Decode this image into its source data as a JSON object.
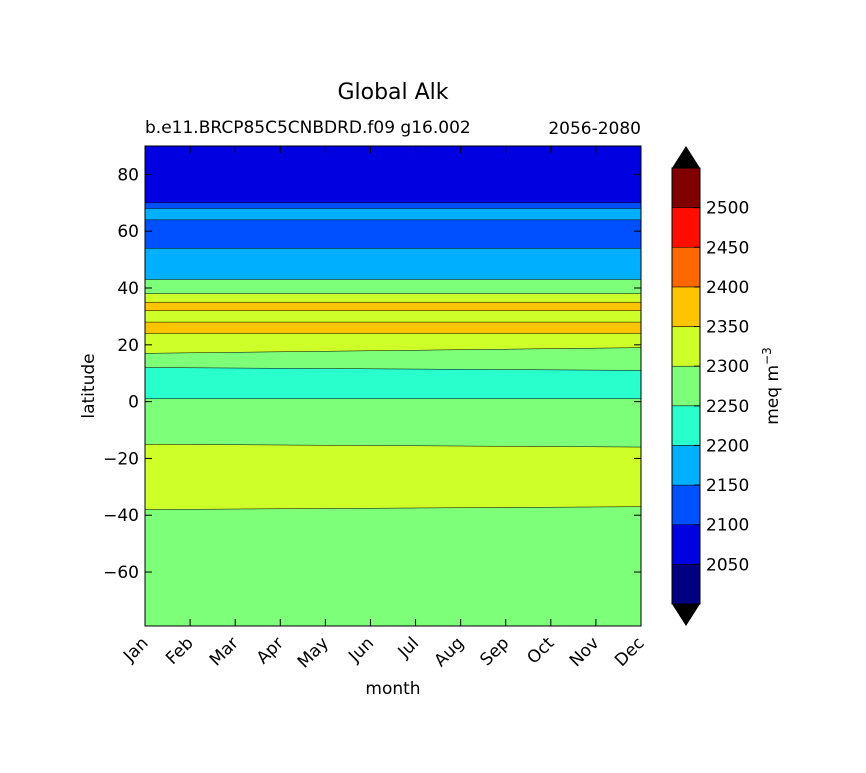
{
  "chart_data": {
    "type": "contourf",
    "title": "Global Alk",
    "subtitle_left": "b.e11.BRCP85C5CNBDRD.f09 g16.002",
    "subtitle_right": "2056-2080",
    "xlabel": "month",
    "ylabel": "latitude",
    "x_ticks": [
      "Jan",
      "Feb",
      "Mar",
      "Apr",
      "May",
      "Jun",
      "Jul",
      "Aug",
      "Sep",
      "Oct",
      "Nov",
      "Dec"
    ],
    "y_ticks": [
      80,
      60,
      40,
      20,
      0,
      -20,
      -40,
      -60
    ],
    "xlim": [
      0,
      11
    ],
    "ylim": [
      -79,
      90
    ],
    "colorbar": {
      "label": "meq m",
      "label_sup": "−3",
      "levels": [
        2000,
        2050,
        2100,
        2150,
        2200,
        2250,
        2300,
        2350,
        2400,
        2450,
        2500,
        2550
      ],
      "tick_labels": [
        "2050",
        "2100",
        "2150",
        "2200",
        "2250",
        "2300",
        "2350",
        "2400",
        "2450",
        "2500"
      ],
      "colors": [
        "#000080",
        "#0000e0",
        "#0050ff",
        "#00b0ff",
        "#29ffcd",
        "#7dff7a",
        "#ceff29",
        "#ffc400",
        "#ff6800",
        "#ff0d00",
        "#800000"
      ],
      "under_color": "#000000",
      "over_color": "#000000",
      "extend": "both"
    },
    "bands": [
      {
        "value_range": [
          2150,
          2200
        ],
        "lat_top": [
          90,
          90
        ],
        "lat_bottom": [
          -79,
          -79
        ]
      },
      {
        "value_range": [
          2250,
          2300
        ],
        "lat_top": [
          43,
          43
        ],
        "lat_bottom": [
          -79,
          -79
        ]
      },
      {
        "value_range": [
          2300,
          2350
        ],
        "lat_top": [
          38,
          38
        ],
        "lat_bottom": [
          17,
          19
        ]
      },
      {
        "value_range": [
          2300,
          2350
        ],
        "lat_top": [
          -15,
          -16
        ],
        "lat_bottom": [
          -38,
          -37
        ]
      },
      {
        "value_range": [
          2350,
          2400
        ],
        "lat_top": [
          35,
          35
        ],
        "lat_bottom": [
          32,
          32
        ]
      },
      {
        "value_range": [
          2350,
          2400
        ],
        "lat_top": [
          28,
          28
        ],
        "lat_bottom": [
          24,
          24
        ]
      },
      {
        "value_range": [
          2200,
          2250
        ],
        "lat_top": [
          12,
          11
        ],
        "lat_bottom": [
          1,
          1
        ]
      },
      {
        "value_range": [
          2100,
          2150
        ],
        "lat_top": [
          90,
          90
        ],
        "lat_bottom": [
          54,
          54
        ]
      },
      {
        "value_range": [
          2150,
          2200
        ],
        "lat_top": [
          68,
          68
        ],
        "lat_bottom": [
          64,
          64
        ]
      },
      {
        "value_range": [
          2050,
          2100
        ],
        "lat_top": [
          90,
          90
        ],
        "lat_bottom": [
          70,
          70
        ]
      }
    ]
  }
}
